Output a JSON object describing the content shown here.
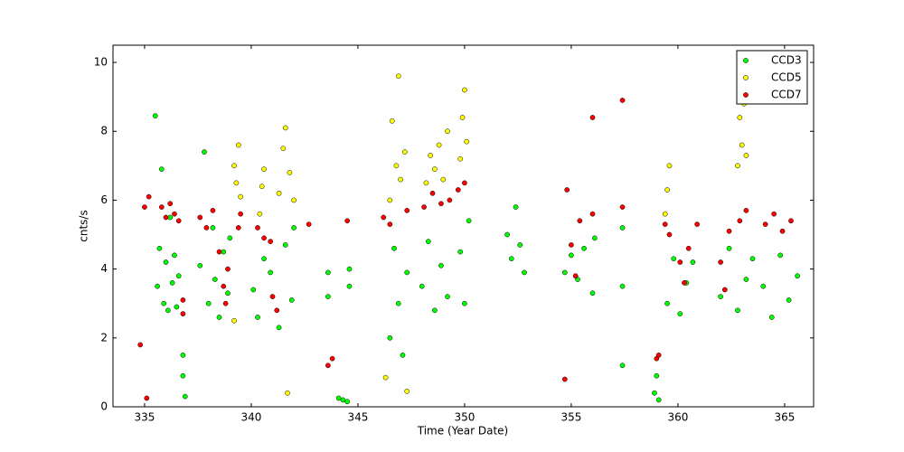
{
  "chart_data": {
    "type": "scatter",
    "x_label": "Time (Year Date)",
    "y_label": "cnts/s",
    "xlim": [
      333.52,
      366.36
    ],
    "ylim": [
      0,
      10.5
    ],
    "xticks": [
      335,
      340,
      345,
      350,
      355,
      360,
      365
    ],
    "yticks": [
      0,
      2,
      4,
      6,
      8,
      10
    ],
    "legend": "upper right",
    "series": [
      {
        "name": "CCD3",
        "color": "#00ff00",
        "x": [
          335.5,
          335.6,
          335.7,
          335.8,
          335.9,
          336.0,
          336.1,
          336.2,
          336.3,
          336.4,
          336.5,
          336.6,
          336.8,
          336.8,
          336.9,
          337.6,
          337.8,
          338.0,
          338.2,
          338.3,
          338.5,
          338.7,
          338.9,
          339.0,
          340.1,
          340.3,
          340.6,
          340.9,
          341.3,
          341.6,
          341.9,
          342.0,
          343.6,
          343.6,
          344.1,
          344.3,
          344.5,
          344.6,
          344.6,
          346.5,
          346.7,
          346.9,
          347.1,
          347.3,
          348.0,
          348.3,
          348.6,
          348.9,
          349.2,
          349.8,
          350.0,
          350.2,
          352.0,
          352.2,
          352.4,
          352.6,
          352.8,
          354.7,
          355.0,
          355.3,
          355.6,
          356.0,
          356.1,
          357.4,
          357.4,
          357.4,
          358.9,
          359.0,
          359.1,
          359.5,
          359.8,
          360.1,
          360.4,
          360.7,
          362.0,
          362.4,
          362.8,
          363.2,
          363.5,
          364.0,
          364.4,
          364.8,
          365.2,
          365.6
        ],
        "values": [
          8.45,
          3.5,
          4.6,
          6.9,
          3.0,
          4.2,
          2.8,
          5.5,
          3.6,
          4.4,
          2.9,
          3.8,
          1.5,
          0.9,
          0.3,
          4.1,
          7.4,
          3.0,
          5.2,
          3.7,
          2.6,
          4.5,
          3.3,
          4.9,
          3.4,
          2.6,
          4.3,
          3.9,
          2.3,
          4.7,
          3.1,
          5.2,
          3.9,
          3.2,
          0.25,
          0.2,
          0.15,
          3.5,
          4.0,
          2.0,
          4.6,
          3.0,
          1.5,
          3.9,
          3.5,
          4.8,
          2.8,
          4.1,
          3.2,
          4.5,
          3.0,
          5.4,
          5.0,
          4.3,
          5.8,
          4.7,
          3.9,
          3.9,
          4.4,
          3.7,
          4.6,
          3.3,
          4.9,
          3.5,
          5.2,
          1.2,
          0.4,
          0.9,
          0.2,
          3.0,
          4.3,
          2.7,
          3.6,
          4.2,
          3.2,
          4.6,
          2.8,
          3.7,
          4.3,
          3.5,
          2.6,
          4.4,
          3.1,
          3.8
        ]
      },
      {
        "name": "CCD5",
        "color": "#ffff00",
        "x": [
          339.2,
          339.3,
          339.4,
          339.5,
          339.2,
          340.4,
          340.5,
          340.6,
          341.3,
          341.5,
          341.6,
          341.8,
          342.0,
          341.7,
          346.3,
          346.5,
          346.6,
          346.8,
          346.9,
          347.0,
          347.2,
          347.3,
          348.2,
          348.4,
          348.6,
          348.8,
          349.0,
          349.2,
          349.8,
          349.9,
          350.0,
          350.1,
          359.4,
          359.5,
          359.6,
          362.8,
          362.9,
          363.0,
          363.1,
          363.2
        ],
        "values": [
          7.0,
          6.5,
          7.6,
          6.1,
          2.5,
          5.6,
          6.4,
          6.9,
          6.2,
          7.5,
          8.1,
          6.8,
          6.0,
          0.4,
          0.85,
          6.0,
          8.3,
          7.0,
          9.6,
          6.6,
          7.4,
          0.45,
          6.5,
          7.3,
          6.9,
          7.6,
          6.6,
          8.0,
          7.2,
          8.4,
          9.2,
          7.7,
          5.6,
          6.3,
          7.0,
          7.0,
          8.4,
          7.6,
          8.8,
          7.3
        ]
      },
      {
        "name": "CCD7",
        "color": "#ff0000",
        "x": [
          334.8,
          335.0,
          335.1,
          335.2,
          335.8,
          336.0,
          336.2,
          336.4,
          336.6,
          336.8,
          336.8,
          337.6,
          337.9,
          338.2,
          338.5,
          338.7,
          338.8,
          338.9,
          339.4,
          339.5,
          340.3,
          340.6,
          340.9,
          341.0,
          341.2,
          342.7,
          343.6,
          343.8,
          344.5,
          346.2,
          346.5,
          347.3,
          348.1,
          348.5,
          348.9,
          349.3,
          349.7,
          350.0,
          354.7,
          354.8,
          355.0,
          355.2,
          355.4,
          356.0,
          356.0,
          357.4,
          357.4,
          359.0,
          359.1,
          359.4,
          359.6,
          360.1,
          360.3,
          360.5,
          360.9,
          362.0,
          362.2,
          362.4,
          362.9,
          363.2,
          364.1,
          364.5,
          364.9,
          365.3
        ],
        "values": [
          1.8,
          5.8,
          0.25,
          6.1,
          5.8,
          5.5,
          5.9,
          5.6,
          5.4,
          3.1,
          2.7,
          5.5,
          5.2,
          5.7,
          4.5,
          3.5,
          3.0,
          4.0,
          5.2,
          5.6,
          5.2,
          4.9,
          4.8,
          3.2,
          2.8,
          5.3,
          1.2,
          1.4,
          5.4,
          5.5,
          5.3,
          5.7,
          5.8,
          6.2,
          5.9,
          6.0,
          6.3,
          6.5,
          0.8,
          6.3,
          4.7,
          3.8,
          5.4,
          8.4,
          5.6,
          8.9,
          5.8,
          1.4,
          1.5,
          5.3,
          5.0,
          4.2,
          3.6,
          4.6,
          5.3,
          4.2,
          3.4,
          5.1,
          5.4,
          5.7,
          5.3,
          5.6,
          5.1,
          5.4
        ]
      }
    ]
  }
}
